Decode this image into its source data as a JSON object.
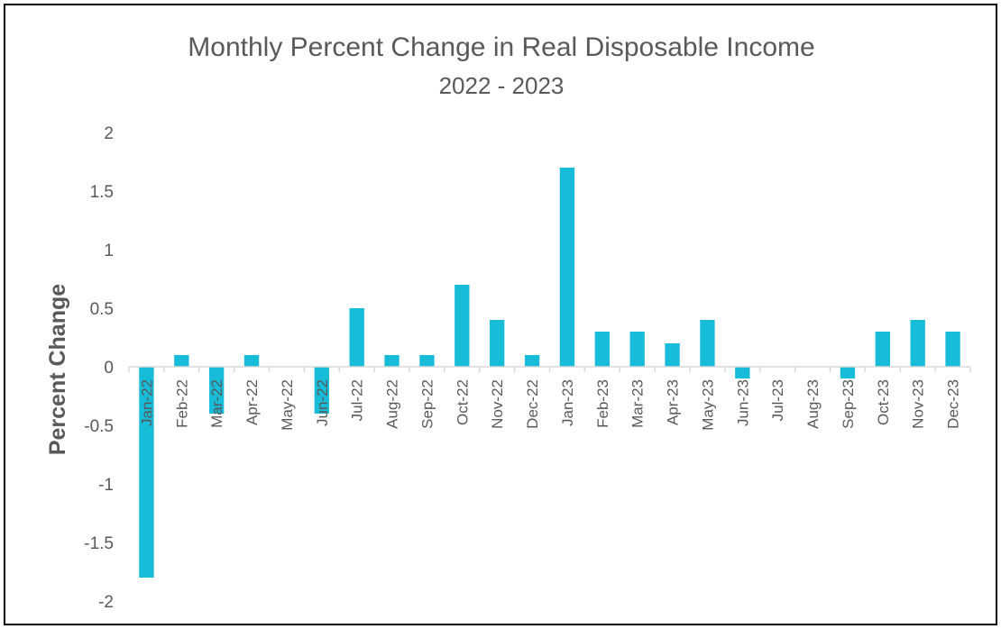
{
  "chart_data": {
    "type": "bar",
    "title": "Monthly Percent Change in Real Disposable Income",
    "subtitle": "2022 - 2023",
    "xlabel": "",
    "ylabel": "Percent Change",
    "ylim": [
      -2,
      2
    ],
    "yticks": [
      2,
      1.5,
      1,
      0.5,
      0,
      -0.5,
      -1,
      -1.5,
      -2
    ],
    "ytick_labels": [
      "2",
      "1.5",
      "1",
      "0.5",
      "0",
      "-0.5",
      "-1",
      "-1.5",
      "-2"
    ],
    "grid": false,
    "legend": "none",
    "bar_color": "#17BCD9",
    "categories": [
      "Jan-22",
      "Feb-22",
      "Mar-22",
      "Apr-22",
      "May-22",
      "Jun-22",
      "Jul-22",
      "Aug-22",
      "Sep-22",
      "Oct-22",
      "Nov-22",
      "Dec-22",
      "Jan-23",
      "Feb-23",
      "Mar-23",
      "Apr-23",
      "May-23",
      "Jun-23",
      "Jul-23",
      "Aug-23",
      "Sep-23",
      "Oct-23",
      "Nov-23",
      "Dec-23"
    ],
    "values": [
      -1.8,
      0.1,
      -0.4,
      0.1,
      0,
      -0.4,
      0.5,
      0.1,
      0.1,
      0.7,
      0.4,
      0.1,
      1.7,
      0.3,
      0.3,
      0.2,
      0.4,
      -0.1,
      0,
      0,
      -0.1,
      0.3,
      0.4,
      0.3
    ]
  }
}
